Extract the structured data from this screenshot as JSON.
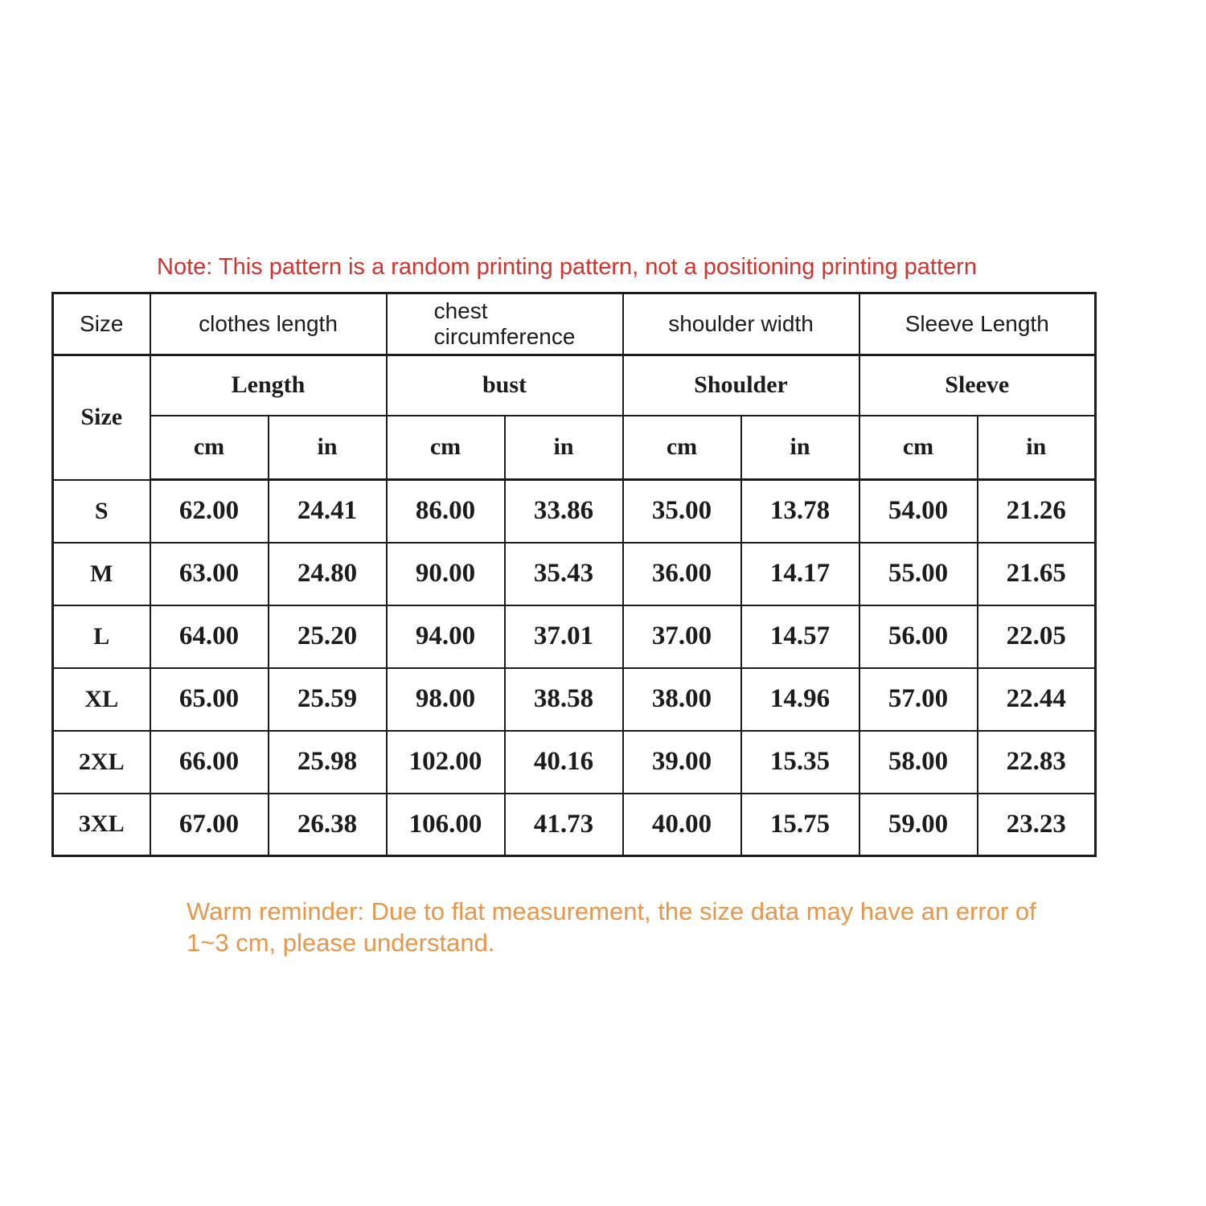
{
  "note": {
    "text": "Note: This pattern is a random printing pattern, not a positioning printing pattern",
    "color": "#D0342C"
  },
  "size_table": {
    "top_header": {
      "size": "Size",
      "clothes_length": "clothes length",
      "chest_line1": "chest",
      "chest_line2": "circumference",
      "shoulder_width": "shoulder width",
      "sleeve_length": "Sleeve Length"
    },
    "group_header": {
      "size": "Size",
      "length": "Length",
      "bust": "bust",
      "shoulder": "Shoulder",
      "sleeve": "Sleeve"
    },
    "unit_row": [
      "cm",
      "in",
      "cm",
      "in",
      "cm",
      "in",
      "cm",
      "in"
    ],
    "rows": [
      {
        "size": "S",
        "values": [
          "62.00",
          "24.41",
          "86.00",
          "33.86",
          "35.00",
          "13.78",
          "54.00",
          "21.26"
        ]
      },
      {
        "size": "M",
        "values": [
          "63.00",
          "24.80",
          "90.00",
          "35.43",
          "36.00",
          "14.17",
          "55.00",
          "21.65"
        ]
      },
      {
        "size": "L",
        "values": [
          "64.00",
          "25.20",
          "94.00",
          "37.01",
          "37.00",
          "14.57",
          "56.00",
          "22.05"
        ]
      },
      {
        "size": "XL",
        "values": [
          "65.00",
          "25.59",
          "98.00",
          "38.58",
          "38.00",
          "14.96",
          "57.00",
          "22.44"
        ]
      },
      {
        "size": "2XL",
        "values": [
          "66.00",
          "25.98",
          "102.00",
          "40.16",
          "39.00",
          "15.35",
          "58.00",
          "22.83"
        ]
      },
      {
        "size": "3XL",
        "values": [
          "67.00",
          "26.38",
          "106.00",
          "41.73",
          "40.00",
          "15.75",
          "59.00",
          "23.23"
        ]
      }
    ]
  },
  "reminder": {
    "text": "Warm reminder: Due to flat measurement, the size data may have an error of 1~3 cm, please understand.",
    "color": "#E8964A"
  }
}
